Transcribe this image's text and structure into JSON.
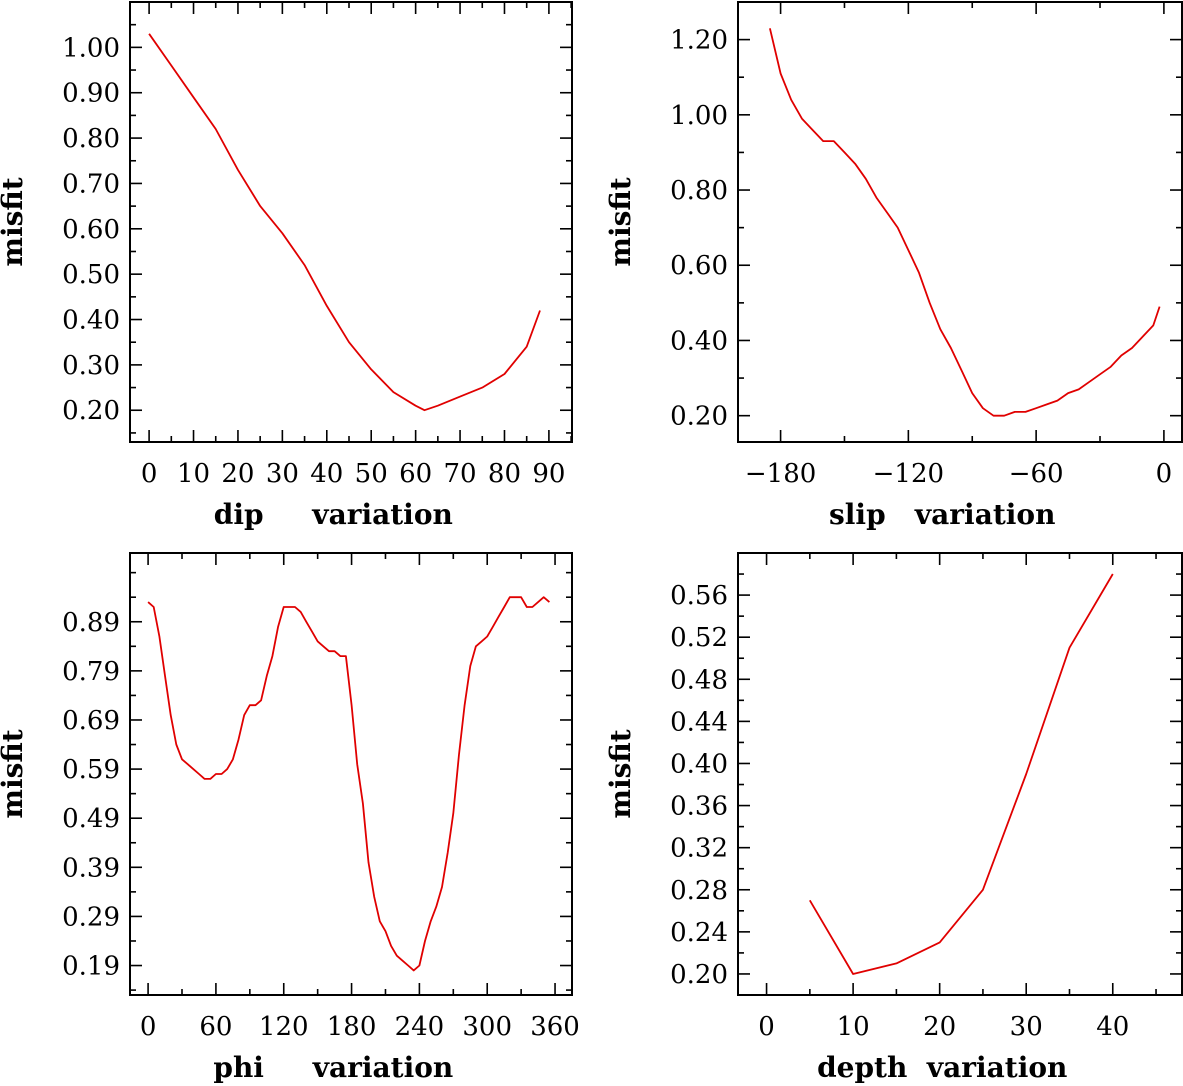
{
  "chart_data": [
    {
      "type": "line",
      "xlabel": "dip     variation",
      "ylabel": "misfit",
      "xlim": [
        -4.3,
        95.2
      ],
      "ylim": [
        0.13,
        1.1
      ],
      "xticks": [
        0,
        10,
        20,
        30,
        40,
        50,
        60,
        70,
        80,
        90
      ],
      "xtick_labels": [
        "0",
        "10",
        "20",
        "30",
        "40",
        "50",
        "60",
        "70",
        "80",
        "90"
      ],
      "yticks": [
        0.2,
        0.3,
        0.4,
        0.5,
        0.6,
        0.7,
        0.8,
        0.9,
        1.0
      ],
      "ytick_labels": [
        "0.20",
        "0.30",
        "0.40",
        "0.50",
        "0.60",
        "0.70",
        "0.80",
        "0.90",
        "1.00"
      ],
      "grid": false,
      "color": "#e00000",
      "x": [
        0,
        5,
        10,
        15,
        20,
        25,
        30,
        35,
        40,
        45,
        50,
        55,
        60,
        62,
        65,
        70,
        75,
        80,
        85,
        88
      ],
      "y": [
        1.03,
        0.96,
        0.89,
        0.82,
        0.73,
        0.65,
        0.59,
        0.52,
        0.43,
        0.35,
        0.29,
        0.24,
        0.21,
        0.2,
        0.21,
        0.23,
        0.25,
        0.28,
        0.34,
        0.42
      ]
    },
    {
      "type": "line",
      "xlabel": "slip   variation",
      "ylabel": "misfit",
      "xlim": [
        -200,
        8.5
      ],
      "ylim": [
        0.13,
        1.3
      ],
      "xticks": [
        -180,
        -120,
        -60,
        0
      ],
      "xtick_labels": [
        "−180",
        "−120",
        "−60",
        "0"
      ],
      "yticks": [
        0.2,
        0.4,
        0.6,
        0.8,
        1.0,
        1.2
      ],
      "ytick_labels": [
        "0.20",
        "0.40",
        "0.60",
        "0.80",
        "1.00",
        "1.20"
      ],
      "grid": false,
      "color": "#e00000",
      "x": [
        -185,
        -180,
        -175,
        -170,
        -165,
        -160,
        -155,
        -150,
        -145,
        -140,
        -135,
        -130,
        -125,
        -120,
        -115,
        -110,
        -105,
        -100,
        -95,
        -90,
        -85,
        -80,
        -75,
        -70,
        -65,
        -60,
        -55,
        -50,
        -45,
        -40,
        -35,
        -30,
        -25,
        -20,
        -15,
        -10,
        -5,
        -2
      ],
      "y": [
        1.23,
        1.11,
        1.04,
        0.99,
        0.96,
        0.93,
        0.93,
        0.9,
        0.87,
        0.83,
        0.78,
        0.74,
        0.7,
        0.64,
        0.58,
        0.5,
        0.43,
        0.38,
        0.32,
        0.26,
        0.22,
        0.2,
        0.2,
        0.21,
        0.21,
        0.22,
        0.23,
        0.24,
        0.26,
        0.27,
        0.29,
        0.31,
        0.33,
        0.36,
        0.38,
        0.41,
        0.44,
        0.49
      ]
    },
    {
      "type": "line",
      "xlabel": "phi     variation",
      "ylabel": "misfit",
      "xlim": [
        -16,
        375
      ],
      "ylim": [
        0.13,
        1.03
      ],
      "xticks": [
        0,
        60,
        120,
        180,
        240,
        300,
        360
      ],
      "xtick_labels": [
        "0",
        "60",
        "120",
        "180",
        "240",
        "300",
        "360"
      ],
      "yticks": [
        0.19,
        0.29,
        0.39,
        0.49,
        0.59,
        0.69,
        0.79,
        0.89
      ],
      "ytick_labels": [
        "0.19",
        "0.29",
        "0.39",
        "0.49",
        "0.59",
        "0.69",
        "0.79",
        "0.89"
      ],
      "grid": false,
      "color": "#e00000",
      "x": [
        0,
        5,
        10,
        15,
        20,
        25,
        30,
        35,
        40,
        45,
        50,
        55,
        60,
        65,
        70,
        75,
        80,
        85,
        90,
        95,
        100,
        105,
        110,
        115,
        120,
        125,
        130,
        135,
        140,
        145,
        150,
        155,
        160,
        165,
        170,
        175,
        180,
        185,
        190,
        195,
        200,
        205,
        210,
        215,
        220,
        225,
        230,
        235,
        240,
        245,
        250,
        255,
        260,
        265,
        270,
        275,
        280,
        285,
        290,
        295,
        300,
        305,
        310,
        315,
        320,
        325,
        330,
        335,
        340,
        345,
        350,
        355
      ],
      "y": [
        0.93,
        0.92,
        0.86,
        0.78,
        0.7,
        0.64,
        0.61,
        0.6,
        0.59,
        0.58,
        0.57,
        0.57,
        0.58,
        0.58,
        0.59,
        0.61,
        0.65,
        0.7,
        0.72,
        0.72,
        0.73,
        0.78,
        0.82,
        0.88,
        0.92,
        0.92,
        0.92,
        0.91,
        0.89,
        0.87,
        0.85,
        0.84,
        0.83,
        0.83,
        0.82,
        0.82,
        0.72,
        0.6,
        0.52,
        0.4,
        0.33,
        0.28,
        0.26,
        0.23,
        0.21,
        0.2,
        0.19,
        0.18,
        0.19,
        0.24,
        0.28,
        0.31,
        0.35,
        0.42,
        0.5,
        0.62,
        0.72,
        0.8,
        0.84,
        0.85,
        0.86,
        0.88,
        0.9,
        0.92,
        0.94,
        0.94,
        0.94,
        0.92,
        0.92,
        0.93,
        0.94,
        0.93
      ]
    },
    {
      "type": "line",
      "xlabel": "depth  variation",
      "ylabel": "misfit",
      "xlim": [
        -3.3,
        48
      ],
      "ylim": [
        0.18,
        0.6
      ],
      "xticks": [
        0,
        10,
        20,
        30,
        40
      ],
      "xtick_labels": [
        "0",
        "10",
        "20",
        "30",
        "40"
      ],
      "yticks": [
        0.2,
        0.24,
        0.28,
        0.32,
        0.36,
        0.4,
        0.44,
        0.48,
        0.52,
        0.56
      ],
      "ytick_labels": [
        "0.20",
        "0.24",
        "0.28",
        "0.32",
        "0.36",
        "0.40",
        "0.44",
        "0.48",
        "0.52",
        "0.56"
      ],
      "grid": false,
      "color": "#e00000",
      "x": [
        5,
        10,
        15,
        20,
        25,
        30,
        35,
        40
      ],
      "y": [
        0.27,
        0.2,
        0.21,
        0.23,
        0.28,
        0.39,
        0.51,
        0.58
      ]
    }
  ]
}
